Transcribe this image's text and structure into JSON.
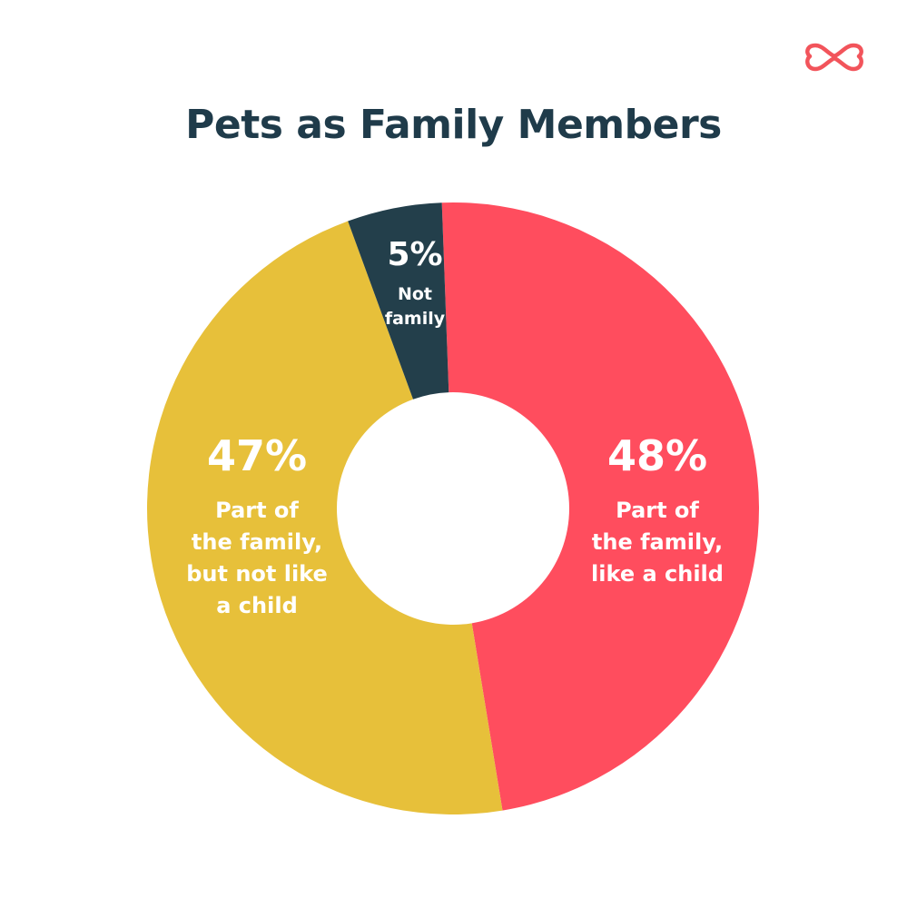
{
  "brand": {
    "logo_icon": "bone-outline-icon",
    "color": "#f2545b"
  },
  "chart_data": {
    "type": "pie",
    "variant": "donut",
    "title": "Pets as Family Members",
    "legend": "none",
    "slices": [
      {
        "value": 48,
        "value_label": "48%",
        "label_lines": [
          "Part of",
          "the family,",
          "like a child"
        ],
        "color": "#ff4d5e"
      },
      {
        "value": 47,
        "value_label": "47%",
        "label_lines": [
          "Part of",
          "the family,",
          "but not like",
          "a child"
        ],
        "color": "#e7c03a"
      },
      {
        "value": 5,
        "value_label": "5%",
        "label_lines": [
          "Not",
          "family"
        ],
        "color": "#233f4b"
      }
    ]
  }
}
